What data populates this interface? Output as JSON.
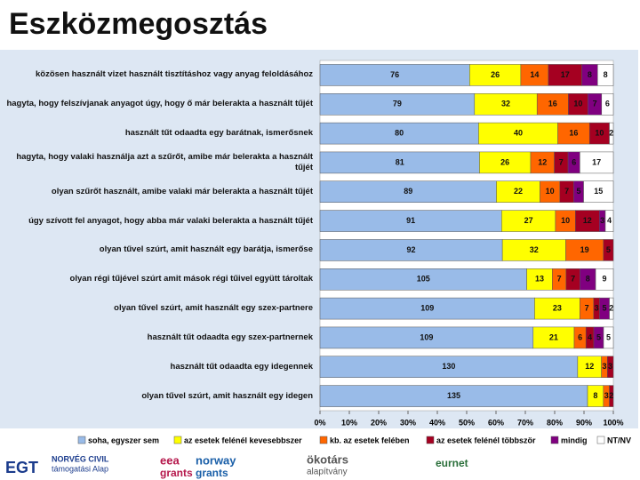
{
  "chart_data": {
    "type": "stacked-bar-100",
    "title": "Eszközmegosztás",
    "categories": [
      "közösen használt vizet használt tisztításhoz vagy anyag feloldásához",
      "hagyta, hogy felszívjanak anyagot úgy, hogy ő már belerakta a használt tűjét",
      "használt tűt odaadta egy barátnak, ismerősnek",
      "hagyta, hogy valaki használja azt a szűrőt, amibe már belerakta a használt tűjét",
      "olyan szűrőt használt, amibe valaki már belerakta a használt tűjét",
      "úgy szívott fel anyagot, hogy abba már valaki belerakta a használt tűjét",
      "olyan tűvel szúrt, amit használt egy barátja, ismerőse",
      "olyan régi tűjével szúrt amit mások régi tűivel együtt tároltak",
      "olyan tűvel szúrt, amit használt egy szex-partnere",
      "használt tűt odaadta egy szex-partnernek",
      "használt tűt odaadta egy idegennek",
      "olyan tűvel szúrt, amit használt egy idegen"
    ],
    "series": [
      {
        "name": "soha, egyszer sem",
        "color": "#99bbe8",
        "values": [
          76,
          79,
          80,
          81,
          89,
          91,
          92,
          105,
          109,
          109,
          130,
          135
        ]
      },
      {
        "name": "az esetek felénél kevesebbszer",
        "color": "#ffff00",
        "values": [
          26,
          32,
          40,
          26,
          22,
          27,
          32,
          13,
          23,
          21,
          12,
          8
        ]
      },
      {
        "name": "kb. az esetek felében",
        "color": "#ff6600",
        "values": [
          14,
          16,
          16,
          12,
          10,
          10,
          19,
          7,
          7,
          6,
          3,
          3
        ]
      },
      {
        "name": "az esetek felénél többször",
        "color": "#a50021",
        "values": [
          17,
          10,
          10,
          7,
          7,
          12,
          5,
          7,
          3,
          4,
          3,
          2
        ]
      },
      {
        "name": "mindig",
        "color": "#800080",
        "values": [
          8,
          7,
          0,
          6,
          5,
          3,
          0,
          8,
          5,
          5,
          0,
          0
        ]
      },
      {
        "name": "NT/NV",
        "color": "#ffffff",
        "values": [
          8,
          6,
          2,
          17,
          15,
          4,
          0,
          9,
          2,
          5,
          0,
          0
        ]
      }
    ],
    "xlim": [
      0,
      100
    ],
    "xticks": [
      {
        "value": 0,
        "label": "0%"
      },
      {
        "value": 10,
        "label": "10%"
      },
      {
        "value": 20,
        "label": "20%"
      },
      {
        "value": 30,
        "label": "30%"
      },
      {
        "value": 40,
        "label": "40%"
      },
      {
        "value": 50,
        "label": "50%"
      },
      {
        "value": 60,
        "label": "60%"
      },
      {
        "value": 70,
        "label": "70%"
      },
      {
        "value": 80,
        "label": "80%"
      },
      {
        "value": 90,
        "label": "90%"
      },
      {
        "value": 100,
        "label": "100%"
      }
    ]
  },
  "footer": {
    "logos": [
      "EGT",
      "NORVÉG CIVIL",
      "támogatási Alap",
      "eea",
      "grants",
      "norway",
      "grants",
      "ökotárs",
      "alapítvány",
      "eurnet"
    ]
  }
}
